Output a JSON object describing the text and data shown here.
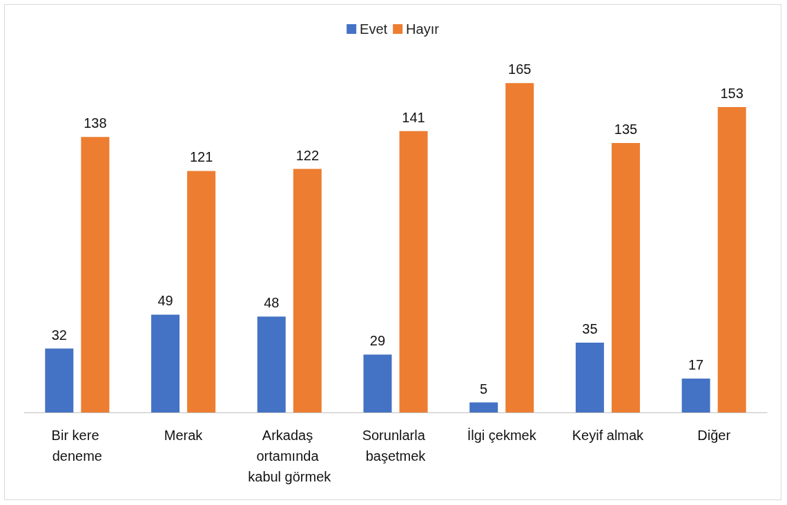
{
  "chart_data": {
    "type": "bar",
    "categories": [
      "Bir kere deneme",
      "Merak",
      "Arkadaş ortamında kabul görmek",
      "Sorunlarla başetmek",
      "İlgi çekmek",
      "Keyif almak",
      "Diğer"
    ],
    "series": [
      {
        "name": "Evet",
        "color": "#4472c4",
        "values": [
          32,
          49,
          48,
          29,
          5,
          35,
          17
        ]
      },
      {
        "name": "Hayır",
        "color": "#ed7d31",
        "values": [
          138,
          121,
          122,
          141,
          165,
          135,
          153
        ]
      }
    ],
    "data_labels": true,
    "legend": "top"
  }
}
